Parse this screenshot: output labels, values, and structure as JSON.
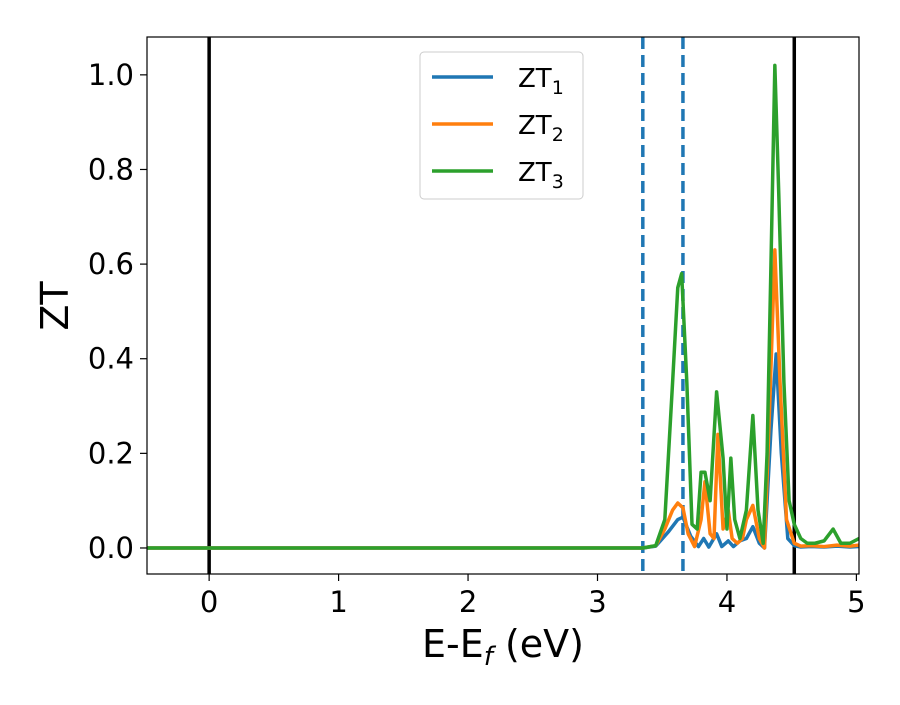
{
  "chart_data": {
    "type": "line",
    "title": "",
    "xlabel": {
      "main": "E-E",
      "sub": "f",
      "unit": " (eV)"
    },
    "ylabel": "ZT",
    "xlim": [
      -0.48,
      5.02
    ],
    "ylim": [
      -0.055,
      1.08
    ],
    "xticks": [
      0,
      1,
      2,
      3,
      4,
      5
    ],
    "yticks": [
      0.0,
      0.2,
      0.4,
      0.6,
      0.8,
      1.0
    ],
    "xtick_labels": [
      "0",
      "1",
      "2",
      "3",
      "4",
      "5"
    ],
    "ytick_labels": [
      "0.0",
      "0.2",
      "0.4",
      "0.6",
      "0.8",
      "1.0"
    ],
    "grid": false,
    "legend_position": "top-center",
    "vlines": [
      {
        "x": 0.0,
        "style": "solid",
        "color": "#000000"
      },
      {
        "x": 3.35,
        "style": "dashed",
        "color": "#1f77b4"
      },
      {
        "x": 3.66,
        "style": "dashed",
        "color": "#1f77b4"
      },
      {
        "x": 4.52,
        "style": "solid",
        "color": "#000000"
      }
    ],
    "series": [
      {
        "name": "ZT",
        "name_sub": "1",
        "color": "#1f77b4",
        "x": [
          -0.48,
          3.35,
          3.45,
          3.55,
          3.62,
          3.66,
          3.72,
          3.78,
          3.82,
          3.86,
          3.92,
          3.96,
          4.01,
          4.05,
          4.1,
          4.15,
          4.2,
          4.25,
          4.29,
          4.34,
          4.38,
          4.42,
          4.47,
          4.52,
          4.57,
          4.65,
          4.75,
          4.85,
          4.95,
          5.02
        ],
        "y": [
          0.0,
          0.0,
          0.004,
          0.035,
          0.06,
          0.065,
          0.025,
          0.003,
          0.02,
          0.002,
          0.03,
          0.003,
          0.015,
          0.003,
          0.015,
          0.02,
          0.045,
          0.01,
          0.0,
          0.25,
          0.41,
          0.2,
          0.02,
          0.005,
          0.002,
          0.003,
          0.002,
          0.004,
          0.002,
          0.003
        ]
      },
      {
        "name": "ZT",
        "name_sub": "2",
        "color": "#ff7f0e",
        "x": [
          -0.48,
          3.35,
          3.45,
          3.52,
          3.58,
          3.62,
          3.66,
          3.7,
          3.75,
          3.8,
          3.83,
          3.87,
          3.9,
          3.93,
          3.97,
          4.01,
          4.04,
          4.08,
          4.12,
          4.15,
          4.2,
          4.25,
          4.29,
          4.33,
          4.37,
          4.41,
          4.46,
          4.52,
          4.57,
          4.65,
          4.75,
          4.85,
          4.95,
          5.02
        ],
        "y": [
          0.0,
          0.0,
          0.005,
          0.04,
          0.08,
          0.095,
          0.085,
          0.03,
          0.003,
          0.06,
          0.14,
          0.03,
          0.02,
          0.24,
          0.04,
          0.08,
          0.02,
          0.01,
          0.02,
          0.06,
          0.09,
          0.02,
          0.0,
          0.3,
          0.63,
          0.35,
          0.06,
          0.01,
          0.004,
          0.005,
          0.003,
          0.006,
          0.004,
          0.006
        ]
      },
      {
        "name": "ZT",
        "name_sub": "3",
        "color": "#2ca02c",
        "x": [
          -0.48,
          3.35,
          3.45,
          3.52,
          3.58,
          3.62,
          3.65,
          3.69,
          3.73,
          3.77,
          3.8,
          3.83,
          3.87,
          3.92,
          3.97,
          4.0,
          4.03,
          4.06,
          4.1,
          4.15,
          4.2,
          4.24,
          4.28,
          4.31,
          4.34,
          4.37,
          4.4,
          4.44,
          4.48,
          4.52,
          4.57,
          4.62,
          4.68,
          4.75,
          4.82,
          4.88,
          4.95,
          5.02
        ],
        "y": [
          0.0,
          0.0,
          0.005,
          0.06,
          0.35,
          0.55,
          0.58,
          0.35,
          0.05,
          0.04,
          0.16,
          0.16,
          0.1,
          0.33,
          0.19,
          0.04,
          0.19,
          0.06,
          0.02,
          0.08,
          0.28,
          0.08,
          0.01,
          0.2,
          0.6,
          1.02,
          0.75,
          0.35,
          0.1,
          0.05,
          0.02,
          0.01,
          0.01,
          0.015,
          0.04,
          0.01,
          0.01,
          0.02
        ]
      }
    ]
  }
}
